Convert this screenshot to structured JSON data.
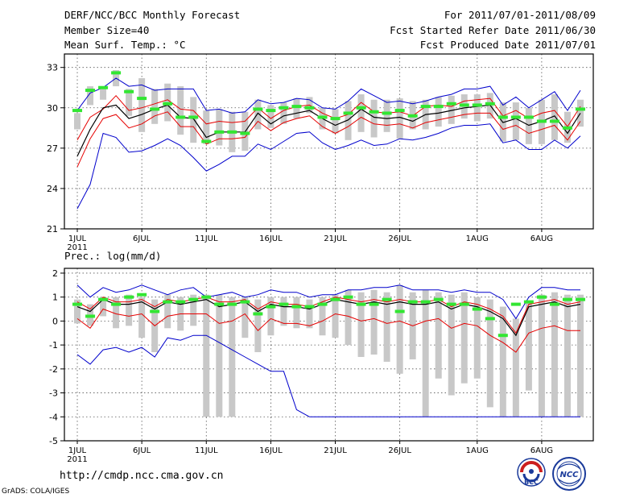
{
  "header": {
    "title": "DERF/NCC/BCC Monthly Forecast",
    "member_size": "Member Size=40",
    "variable": "Mean Surf. Temp.: °C",
    "period": "For 2011/07/01-2011/08/09",
    "started": "Fcst Started Refer Date 2011/06/30",
    "produced": "Fcst Produced Date 2011/07/01"
  },
  "footer": {
    "url": "http://cmdp.ncc.cma.gov.cn",
    "credit": "GrADS: COLA/IGES",
    "logo_left": "BCC",
    "logo_right": "NCC"
  },
  "colors": {
    "bar": "#c8c8c8",
    "obs": "#32e632",
    "envelope": "#0000cc",
    "spread": "#e60000",
    "mean": "#000000"
  },
  "chart_data": [
    {
      "type": "box",
      "title": "Mean Surf. Temp.: °C",
      "x_ticks": [
        "1JUL",
        "6JUL",
        "11JUL",
        "16JUL",
        "21JUL",
        "26JUL",
        "1AUG",
        "6AUG"
      ],
      "x_tick_days": [
        1,
        6,
        11,
        16,
        21,
        26,
        32,
        37
      ],
      "year_label": "2011",
      "ylim": [
        21,
        34
      ],
      "yticks": [
        21,
        24,
        27,
        30,
        33
      ],
      "days": [
        1,
        2,
        3,
        4,
        5,
        6,
        7,
        8,
        9,
        10,
        11,
        12,
        13,
        14,
        15,
        16,
        17,
        18,
        19,
        20,
        21,
        22,
        23,
        24,
        25,
        26,
        27,
        28,
        29,
        30,
        31,
        32,
        33,
        34,
        35,
        36,
        37,
        38,
        39,
        40
      ],
      "max": [
        29.8,
        31.1,
        31.5,
        32.2,
        31.6,
        31.7,
        31.3,
        31.4,
        31.4,
        31.4,
        29.8,
        29.9,
        29.6,
        29.7,
        30.6,
        30.3,
        30.4,
        30.7,
        30.6,
        30.0,
        29.9,
        30.5,
        31.4,
        30.9,
        30.4,
        30.5,
        30.3,
        30.5,
        30.8,
        31.0,
        31.4,
        31.4,
        31.6,
        30.2,
        30.8,
        30.0,
        30.6,
        31.2,
        29.8,
        31.3
      ],
      "p_hi": [
        27.6,
        29.3,
        29.9,
        30.9,
        29.8,
        30.0,
        30.3,
        30.6,
        29.9,
        29.8,
        28.8,
        29.0,
        28.9,
        29.0,
        30.0,
        29.2,
        29.8,
        30.1,
        30.2,
        29.6,
        29.2,
        29.5,
        30.4,
        29.7,
        29.6,
        29.7,
        29.4,
        30.1,
        30.2,
        30.1,
        30.5,
        30.6,
        30.7,
        29.4,
        29.8,
        29.2,
        29.6,
        29.8,
        28.6,
        30.1
      ],
      "mean": [
        26.4,
        28.4,
        30.0,
        30.2,
        29.2,
        29.5,
        29.9,
        30.2,
        29.3,
        29.2,
        27.8,
        28.2,
        28.2,
        28.2,
        29.6,
        28.8,
        29.4,
        29.6,
        29.8,
        29.2,
        28.7,
        29.1,
        29.9,
        29.3,
        29.2,
        29.3,
        29.0,
        29.5,
        29.6,
        29.8,
        30.0,
        30.1,
        30.2,
        28.9,
        29.2,
        28.7,
        29.0,
        29.4,
        28.1,
        29.6
      ],
      "p_lo": [
        25.6,
        27.7,
        29.2,
        29.5,
        28.5,
        28.8,
        29.4,
        29.7,
        28.6,
        28.6,
        27.3,
        27.7,
        27.7,
        27.8,
        29.0,
        28.3,
        28.9,
        29.2,
        29.4,
        28.6,
        28.1,
        28.6,
        29.3,
        28.8,
        28.7,
        28.8,
        28.5,
        28.9,
        29.1,
        29.3,
        29.5,
        29.6,
        29.6,
        28.4,
        28.7,
        28.1,
        28.4,
        28.7,
        27.6,
        29.0
      ],
      "min": [
        22.5,
        24.3,
        28.1,
        27.8,
        26.7,
        26.8,
        27.2,
        27.7,
        27.2,
        26.3,
        25.3,
        25.8,
        26.4,
        26.4,
        27.3,
        26.9,
        27.5,
        28.1,
        28.2,
        27.4,
        26.9,
        27.2,
        27.6,
        27.2,
        27.3,
        27.7,
        27.6,
        27.8,
        28.1,
        28.5,
        28.7,
        28.7,
        28.8,
        27.4,
        27.6,
        26.9,
        26.9,
        27.6,
        27.0,
        27.9
      ],
      "bar_top": [
        29.6,
        31.6,
        31.6,
        32.8,
        31.4,
        32.2,
        31.4,
        31.8,
        31.6,
        30.8,
        29.8,
        29.9,
        29.7,
        29.7,
        30.6,
        30.2,
        30.4,
        30.7,
        30.8,
        30.0,
        29.9,
        30.5,
        31.0,
        30.6,
        30.6,
        30.7,
        30.5,
        30.6,
        30.8,
        30.9,
        31.0,
        31.0,
        31.1,
        30.4,
        30.4,
        30.0,
        30.6,
        31.0,
        29.7,
        30.6
      ],
      "bar_bot": [
        28.4,
        30.2,
        30.6,
        31.6,
        29.4,
        28.2,
        28.8,
        29.0,
        28.0,
        27.4,
        27.3,
        27.2,
        26.7,
        26.8,
        28.4,
        28.5,
        28.8,
        29.2,
        29.6,
        28.4,
        28.1,
        27.6,
        28.2,
        27.8,
        28.2,
        27.7,
        28.4,
        28.4,
        28.6,
        28.8,
        29.2,
        29.0,
        29.2,
        27.5,
        27.6,
        27.3,
        27.3,
        27.6,
        27.4,
        28.6
      ],
      "obs": [
        29.8,
        31.3,
        31.5,
        32.6,
        31.2,
        30.7,
        29.9,
        30.3,
        29.3,
        29.3,
        27.5,
        28.2,
        28.2,
        28.1,
        29.9,
        29.8,
        30.0,
        30.1,
        30.0,
        29.3,
        29.2,
        29.6,
        30.0,
        29.7,
        29.6,
        29.8,
        29.4,
        30.1,
        30.1,
        30.3,
        30.2,
        30.2,
        30.3,
        29.3,
        29.3,
        29.3,
        29.0,
        29.0,
        28.5,
        29.9
      ]
    },
    {
      "type": "box",
      "title": "Prec.: log(mm/d)",
      "x_ticks": [
        "1JUL",
        "6JUL",
        "11JUL",
        "16JUL",
        "21JUL",
        "26JUL",
        "1AUG",
        "6AUG"
      ],
      "x_tick_days": [
        1,
        6,
        11,
        16,
        21,
        26,
        32,
        37
      ],
      "year_label": "2011",
      "ylim": [
        -5,
        2.2
      ],
      "yticks": [
        -5,
        -4,
        -3,
        -2,
        -1,
        0,
        1,
        2
      ],
      "days": [
        1,
        2,
        3,
        4,
        5,
        6,
        7,
        8,
        9,
        10,
        11,
        12,
        13,
        14,
        15,
        16,
        17,
        18,
        19,
        20,
        21,
        22,
        23,
        24,
        25,
        26,
        27,
        28,
        29,
        30,
        31,
        32,
        33,
        34,
        35,
        36,
        37,
        38,
        39,
        40
      ],
      "max": [
        1.5,
        1.0,
        1.4,
        1.2,
        1.3,
        1.5,
        1.3,
        1.1,
        1.3,
        1.4,
        1.0,
        1.1,
        1.2,
        1.0,
        1.1,
        1.3,
        1.2,
        1.2,
        1.0,
        1.1,
        1.1,
        1.3,
        1.3,
        1.4,
        1.4,
        1.5,
        1.3,
        1.3,
        1.3,
        1.2,
        1.3,
        1.2,
        1.2,
        0.9,
        0.1,
        1.0,
        1.4,
        1.4,
        1.3,
        1.3
      ],
      "p_hi": [
        0.8,
        0.5,
        1.0,
        0.8,
        0.8,
        0.9,
        0.6,
        0.9,
        0.8,
        0.9,
        1.0,
        0.8,
        0.8,
        0.9,
        0.5,
        0.8,
        0.7,
        0.7,
        0.6,
        0.8,
        1.0,
        0.9,
        0.8,
        0.9,
        0.8,
        0.9,
        0.8,
        0.8,
        0.9,
        0.6,
        0.8,
        0.7,
        0.5,
        0.2,
        -0.5,
        0.7,
        0.8,
        0.9,
        0.7,
        0.8
      ],
      "mean": [
        0.6,
        0.4,
        0.9,
        0.7,
        0.7,
        0.8,
        0.5,
        0.8,
        0.7,
        0.8,
        0.9,
        0.6,
        0.7,
        0.8,
        0.4,
        0.7,
        0.6,
        0.6,
        0.5,
        0.7,
        0.9,
        0.8,
        0.7,
        0.8,
        0.7,
        0.8,
        0.7,
        0.7,
        0.8,
        0.5,
        0.7,
        0.6,
        0.4,
        0.1,
        -0.6,
        0.6,
        0.7,
        0.8,
        0.6,
        0.7
      ],
      "p_lo": [
        0.1,
        -0.3,
        0.5,
        0.3,
        0.2,
        0.3,
        -0.2,
        0.2,
        0.3,
        0.3,
        0.3,
        -0.1,
        0.0,
        0.3,
        -0.4,
        0.1,
        -0.1,
        -0.1,
        -0.2,
        0.0,
        0.3,
        0.2,
        0.0,
        0.1,
        -0.1,
        0.0,
        -0.2,
        0.0,
        0.1,
        -0.3,
        -0.1,
        -0.2,
        -0.6,
        -0.9,
        -1.3,
        -0.5,
        -0.3,
        -0.2,
        -0.4,
        -0.4
      ],
      "min": [
        -1.4,
        -1.8,
        -1.2,
        -1.1,
        -1.3,
        -1.1,
        -1.5,
        -0.7,
        -0.8,
        -0.6,
        -0.6,
        -0.9,
        -1.2,
        -1.5,
        -1.8,
        -2.1,
        -2.1,
        -3.7,
        -4.0,
        -4.0,
        -4.0,
        -4.0,
        -4.0,
        -4.0,
        -4.0,
        -4.0,
        -4.0,
        -4.0,
        -4.0,
        -4.0,
        -4.0,
        -4.0,
        -4.0,
        -4.0,
        -4.0,
        -4.0,
        -4.0,
        -4.0,
        -4.0,
        -4.0
      ],
      "bar_top": [
        0.9,
        0.7,
        1.0,
        1.0,
        1.1,
        1.0,
        0.9,
        1.1,
        1.0,
        1.1,
        1.1,
        1.1,
        1.0,
        1.0,
        0.9,
        1.0,
        1.0,
        1.0,
        0.9,
        1.0,
        1.1,
        1.3,
        1.2,
        1.3,
        1.2,
        1.5,
        1.2,
        1.3,
        1.2,
        1.1,
        1.2,
        1.0,
        0.9,
        0.6,
        0.1,
        0.8,
        1.1,
        1.2,
        1.1,
        1.1
      ],
      "bar_bot": [
        -0.1,
        -0.2,
        0.2,
        -0.3,
        -0.2,
        -0.7,
        -1.3,
        -0.3,
        -0.4,
        -0.2,
        -4.0,
        -4.0,
        -4.0,
        -0.7,
        -1.3,
        -0.6,
        -0.2,
        -0.3,
        -0.3,
        -0.6,
        -0.7,
        -1.0,
        -1.5,
        -1.4,
        -1.7,
        -2.2,
        -1.6,
        -4.0,
        -2.4,
        -3.1,
        -2.6,
        -2.4,
        -3.6,
        -4.0,
        -4.0,
        -2.9,
        -4.0,
        -4.0,
        -4.0,
        -4.0
      ],
      "obs": [
        0.7,
        0.2,
        0.9,
        0.7,
        1.0,
        1.1,
        0.4,
        0.8,
        0.8,
        0.9,
        1.0,
        0.7,
        0.7,
        0.8,
        0.3,
        0.6,
        0.7,
        0.6,
        0.6,
        0.7,
        0.9,
        1.0,
        0.7,
        0.7,
        0.9,
        0.4,
        0.8,
        0.8,
        0.9,
        0.7,
        0.7,
        0.5,
        0.1,
        -0.6,
        0.7,
        0.8,
        1.0,
        0.7,
        0.9,
        0.9
      ]
    }
  ]
}
